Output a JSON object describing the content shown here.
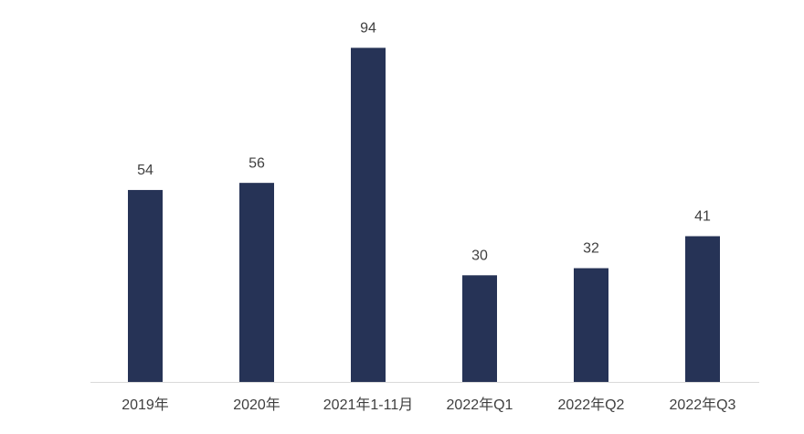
{
  "chart_data": {
    "type": "bar",
    "categories": [
      "2019年",
      "2020年",
      "2021年1-11月",
      "2022年Q1",
      "2022年Q2",
      "2022年Q3"
    ],
    "values": [
      54,
      56,
      94,
      30,
      32,
      41
    ],
    "color": "#263356",
    "ylim": [
      0,
      100
    ]
  }
}
